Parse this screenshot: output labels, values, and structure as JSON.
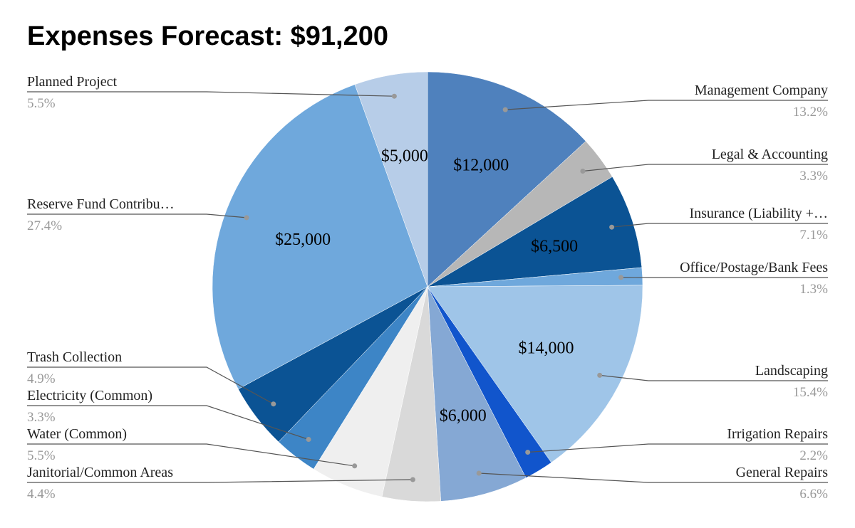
{
  "chart_data": {
    "type": "pie",
    "title": "Expenses Forecast: $91,200",
    "total": 91200,
    "slices": [
      {
        "name": "Management Company",
        "name_display": "Management Company",
        "value": 12000,
        "value_label": "$12,000",
        "percent_label": "13.2%",
        "color": "#4f81bd"
      },
      {
        "name": "Legal & Accounting",
        "name_display": "Legal & Accounting",
        "value": 3000,
        "value_label": "",
        "percent_label": "3.3%",
        "color": "#b7b7b7"
      },
      {
        "name": "Insurance (Liability + ...)",
        "name_display": "Insurance (Liability +…",
        "value": 6500,
        "value_label": "$6,500",
        "percent_label": "7.1%",
        "color": "#0b5394"
      },
      {
        "name": "Office/Postage/Bank Fees",
        "name_display": "Office/Postage/Bank Fees",
        "value": 1200,
        "value_label": "",
        "percent_label": "1.3%",
        "color": "#6fa8dc"
      },
      {
        "name": "Landscaping",
        "name_display": "Landscaping",
        "value": 14000,
        "value_label": "$14,000",
        "percent_label": "15.4%",
        "color": "#9fc5e8"
      },
      {
        "name": "Irrigation Repairs",
        "name_display": "Irrigation Repairs",
        "value": 2000,
        "value_label": "",
        "percent_label": "2.2%",
        "color": "#1155cc"
      },
      {
        "name": "General Repairs",
        "name_display": "General Repairs",
        "value": 6000,
        "value_label": "$6,000",
        "percent_label": "6.6%",
        "color": "#85a8d4"
      },
      {
        "name": "Janitorial/Common Areas",
        "name_display": "Janitorial/Common Areas",
        "value": 4000,
        "value_label": "",
        "percent_label": "4.4%",
        "color": "#d9d9d9"
      },
      {
        "name": "Water (Common)",
        "name_display": "Water (Common)",
        "value": 5000,
        "value_label": "",
        "percent_label": "5.5%",
        "color": "#efefef"
      },
      {
        "name": "Electricity (Common)",
        "name_display": "Electricity (Common)",
        "value": 3000,
        "value_label": "",
        "percent_label": "3.3%",
        "color": "#3d85c6"
      },
      {
        "name": "Trash Collection",
        "name_display": "Trash Collection",
        "value": 4500,
        "value_label": "",
        "percent_label": "4.9%",
        "color": "#0b5394"
      },
      {
        "name": "Reserve Fund Contribution",
        "name_display": "Reserve Fund Contribu…",
        "value": 25000,
        "value_label": "$25,000",
        "percent_label": "27.4%",
        "color": "#6fa8dc"
      },
      {
        "name": "Planned Project",
        "name_display": "Planned Project",
        "value": 5000,
        "value_label": "$5,000",
        "percent_label": "5.5%",
        "color": "#b7cde8"
      }
    ]
  }
}
